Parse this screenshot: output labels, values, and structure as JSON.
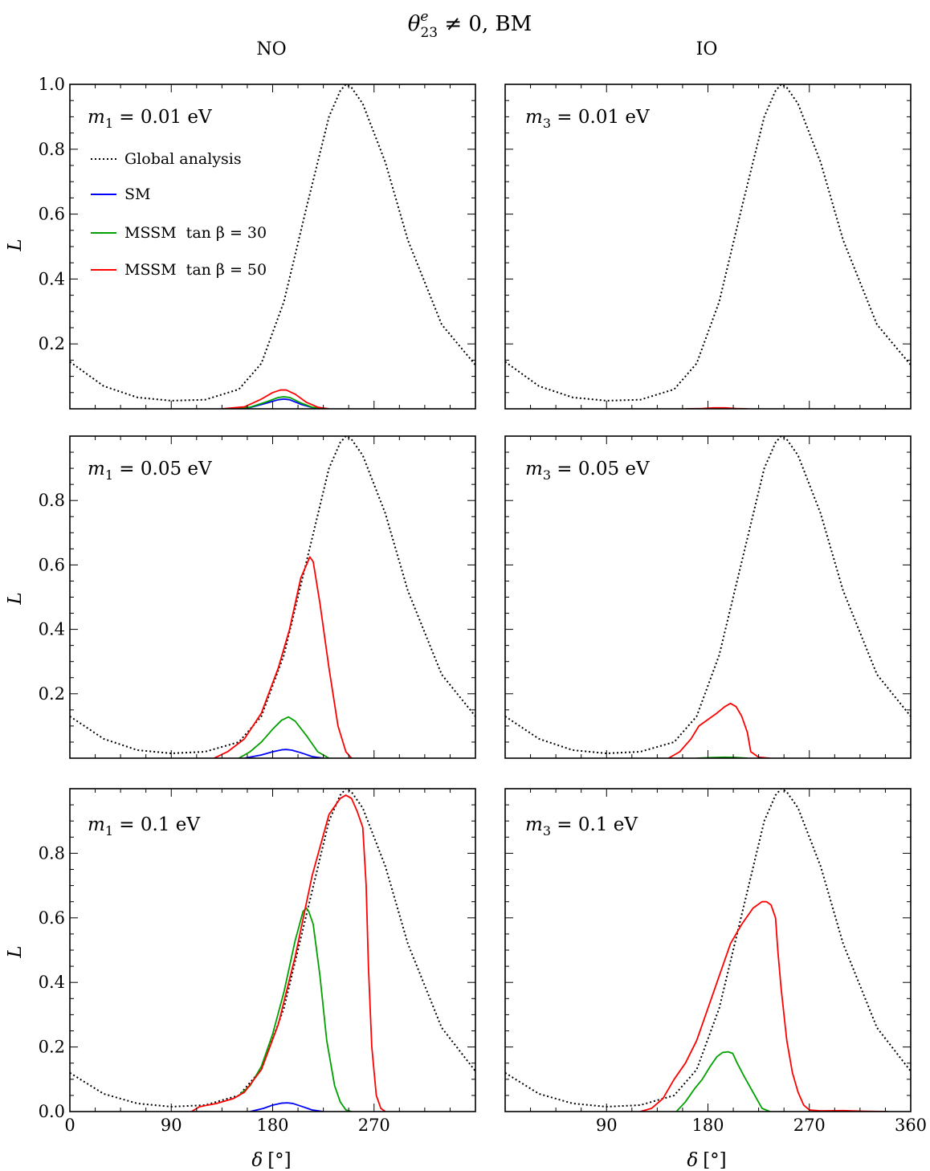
{
  "figure": {
    "title": "θ₂₃ᵉ ≠ 0, BM",
    "title_parts": {
      "symbol": "θ",
      "superscript": "e",
      "subscript": "23",
      "rest": " ≠ 0, BM"
    },
    "columns": [
      "NO",
      "IO"
    ],
    "x_axis_label": "δ [°]",
    "x_axis_label_parts": {
      "symbol": "δ",
      "unit": "[°]"
    },
    "y_axis_label": "L",
    "colors": {
      "global": "#000000",
      "sm": "#0000ff",
      "mssm30": "#00a000",
      "mssm50": "#ff0000"
    }
  },
  "legend": {
    "placement": "upper-left of top-left panel",
    "entries": [
      {
        "label": "Global analysis",
        "color": "#000000",
        "style": "dotted"
      },
      {
        "label": "SM",
        "color": "#0000ff",
        "style": "solid"
      },
      {
        "label": "MSSM  tan β = 30",
        "color": "#00a000",
        "style": "solid"
      },
      {
        "label": "MSSM  tan β = 50",
        "color": "#ff0000",
        "style": "solid"
      }
    ]
  },
  "chart_data": [
    {
      "type": "line",
      "id": "NO-m0.01",
      "ordering": "NO",
      "annotation": "m₁ = 0.01 eV",
      "annot_parts": {
        "mass": "m",
        "index": "1",
        "value": " = 0.01 eV"
      },
      "xlim": [
        0,
        360
      ],
      "ylim": [
        0,
        1.0
      ],
      "xticks": [],
      "yticks": [
        0.2,
        0.4,
        0.6,
        0.8,
        1.0
      ],
      "ytick_labels": [
        "0.2",
        "0.4",
        "0.6",
        "0.8",
        "1.0"
      ],
      "series": [
        {
          "name": "Global analysis",
          "x": [
            0,
            30,
            60,
            90,
            120,
            150,
            170,
            190,
            210,
            230,
            240,
            245,
            250,
            260,
            280,
            300,
            330,
            360
          ],
          "y": [
            0.145,
            0.07,
            0.035,
            0.025,
            0.028,
            0.06,
            0.14,
            0.33,
            0.62,
            0.9,
            0.98,
            1.0,
            0.99,
            0.94,
            0.76,
            0.52,
            0.26,
            0.135
          ]
        },
        {
          "name": "SM",
          "x": [
            140,
            160,
            175,
            185,
            190,
            195,
            205,
            215,
            225
          ],
          "y": [
            0,
            0.004,
            0.018,
            0.028,
            0.03,
            0.028,
            0.014,
            0.004,
            0
          ]
        },
        {
          "name": "MSSM  tan β = 30",
          "x": [
            140,
            160,
            175,
            185,
            190,
            195,
            205,
            215,
            225
          ],
          "y": [
            0,
            0.005,
            0.022,
            0.035,
            0.037,
            0.035,
            0.018,
            0.005,
            0
          ]
        },
        {
          "name": "MSSM  tan β = 50",
          "x": [
            135,
            155,
            170,
            180,
            187,
            192,
            200,
            210,
            220,
            230
          ],
          "y": [
            0,
            0.006,
            0.03,
            0.05,
            0.058,
            0.058,
            0.045,
            0.02,
            0.005,
            0
          ]
        }
      ]
    },
    {
      "type": "line",
      "id": "IO-m0.01",
      "ordering": "IO",
      "annotation": "m₃ = 0.01 eV",
      "annot_parts": {
        "mass": "m",
        "index": "3",
        "value": " = 0.01 eV"
      },
      "xlim": [
        0,
        360
      ],
      "ylim": [
        0,
        1.0
      ],
      "xticks": [],
      "yticks": [],
      "ytick_labels": [],
      "series": [
        {
          "name": "Global analysis",
          "x": [
            0,
            30,
            60,
            90,
            120,
            150,
            170,
            190,
            210,
            230,
            240,
            245,
            250,
            260,
            280,
            300,
            330,
            360
          ],
          "y": [
            0.145,
            0.07,
            0.035,
            0.025,
            0.028,
            0.06,
            0.14,
            0.33,
            0.62,
            0.9,
            0.98,
            1.0,
            0.99,
            0.94,
            0.76,
            0.52,
            0.26,
            0.135
          ]
        },
        {
          "name": "MSSM  tan β = 50",
          "x": [
            160,
            175,
            185,
            195,
            205,
            215
          ],
          "y": [
            0,
            0.001,
            0.003,
            0.003,
            0.001,
            0
          ]
        }
      ]
    },
    {
      "type": "line",
      "id": "NO-m0.05",
      "ordering": "NO",
      "annotation": "m₁ = 0.05 eV",
      "annot_parts": {
        "mass": "m",
        "index": "1",
        "value": " = 0.05 eV"
      },
      "xlim": [
        0,
        360
      ],
      "ylim": [
        0,
        1.0
      ],
      "xticks": [],
      "yticks": [
        0.2,
        0.4,
        0.6,
        0.8
      ],
      "ytick_labels": [
        "0.2",
        "0.4",
        "0.6",
        "0.8"
      ],
      "series": [
        {
          "name": "Global analysis",
          "x": [
            0,
            30,
            60,
            90,
            120,
            150,
            170,
            190,
            210,
            230,
            240,
            245,
            250,
            260,
            280,
            300,
            330,
            360
          ],
          "y": [
            0.13,
            0.06,
            0.025,
            0.015,
            0.02,
            0.05,
            0.13,
            0.32,
            0.61,
            0.9,
            0.98,
            1.0,
            0.99,
            0.94,
            0.76,
            0.52,
            0.26,
            0.13
          ]
        },
        {
          "name": "SM",
          "x": [
            155,
            170,
            180,
            188,
            192,
            197,
            205,
            215,
            225
          ],
          "y": [
            0,
            0.01,
            0.02,
            0.026,
            0.027,
            0.025,
            0.017,
            0.005,
            0
          ]
        },
        {
          "name": "MSSM  tan β = 30",
          "x": [
            150,
            160,
            170,
            180,
            188,
            194,
            200,
            210,
            220,
            230
          ],
          "y": [
            0,
            0.02,
            0.05,
            0.09,
            0.118,
            0.128,
            0.115,
            0.07,
            0.02,
            0
          ]
        },
        {
          "name": "MSSM  tan β = 50",
          "x": [
            128,
            140,
            155,
            170,
            185,
            195,
            205,
            210,
            213,
            216,
            222,
            230,
            238,
            245,
            250
          ],
          "y": [
            0,
            0.02,
            0.06,
            0.14,
            0.28,
            0.4,
            0.56,
            0.6,
            0.625,
            0.61,
            0.48,
            0.28,
            0.1,
            0.02,
            0
          ]
        }
      ]
    },
    {
      "type": "line",
      "id": "IO-m0.05",
      "ordering": "IO",
      "annotation": "m₃ = 0.05 eV",
      "annot_parts": {
        "mass": "m",
        "index": "3",
        "value": " = 0.05 eV"
      },
      "xlim": [
        0,
        360
      ],
      "ylim": [
        0,
        1.0
      ],
      "xticks": [],
      "yticks": [],
      "ytick_labels": [],
      "series": [
        {
          "name": "Global analysis",
          "x": [
            0,
            30,
            60,
            90,
            120,
            150,
            170,
            190,
            210,
            230,
            240,
            245,
            250,
            260,
            280,
            300,
            330,
            360
          ],
          "y": [
            0.13,
            0.06,
            0.025,
            0.015,
            0.02,
            0.05,
            0.13,
            0.32,
            0.61,
            0.9,
            0.98,
            1.0,
            0.99,
            0.94,
            0.76,
            0.52,
            0.26,
            0.13
          ]
        },
        {
          "name": "MSSM  tan β = 30",
          "x": [
            170,
            185,
            195,
            205,
            215
          ],
          "y": [
            0,
            0.002,
            0.003,
            0.002,
            0
          ]
        },
        {
          "name": "MSSM  tan β = 50",
          "x": [
            145,
            155,
            165,
            172,
            180,
            188,
            195,
            200,
            205,
            210,
            215,
            218,
            225,
            235
          ],
          "y": [
            0,
            0.02,
            0.06,
            0.1,
            0.12,
            0.14,
            0.16,
            0.17,
            0.16,
            0.13,
            0.08,
            0.02,
            0.003,
            0
          ]
        }
      ]
    },
    {
      "type": "line",
      "id": "NO-m0.1",
      "ordering": "NO",
      "annotation": "m₁ = 0.1 eV",
      "annot_parts": {
        "mass": "m",
        "index": "1",
        "value": " = 0.1 eV"
      },
      "xlim": [
        0,
        360
      ],
      "ylim": [
        0,
        1.0
      ],
      "xticks": [
        0,
        90,
        180,
        270
      ],
      "xtick_labels": [
        "0",
        "90",
        "180",
        "270"
      ],
      "yticks": [
        0.0,
        0.2,
        0.4,
        0.6,
        0.8
      ],
      "ytick_labels": [
        "0.0",
        "0.2",
        "0.4",
        "0.6",
        "0.8"
      ],
      "series": [
        {
          "name": "Global analysis",
          "x": [
            0,
            30,
            60,
            90,
            120,
            150,
            170,
            190,
            210,
            230,
            240,
            245,
            250,
            260,
            280,
            300,
            330,
            360
          ],
          "y": [
            0.12,
            0.055,
            0.025,
            0.015,
            0.02,
            0.05,
            0.13,
            0.32,
            0.61,
            0.9,
            0.98,
            1.0,
            0.99,
            0.94,
            0.76,
            0.52,
            0.26,
            0.125
          ]
        },
        {
          "name": "SM",
          "x": [
            160,
            172,
            180,
            188,
            193,
            198,
            205,
            215,
            225
          ],
          "y": [
            0,
            0.01,
            0.02,
            0.026,
            0.027,
            0.025,
            0.017,
            0.005,
            0
          ]
        },
        {
          "name": "MSSM  tan β = 30",
          "x": [
            150,
            160,
            170,
            180,
            190,
            200,
            207,
            210,
            212,
            216,
            222,
            228,
            235,
            240,
            245,
            250
          ],
          "y": [
            0.05,
            0.08,
            0.14,
            0.24,
            0.37,
            0.53,
            0.62,
            0.63,
            0.62,
            0.58,
            0.42,
            0.22,
            0.08,
            0.03,
            0.005,
            0
          ]
        },
        {
          "name": "MSSM  tan β = 50",
          "x": [
            108,
            115,
            130,
            145,
            155,
            170,
            185,
            200,
            215,
            230,
            240,
            245,
            250,
            255,
            260,
            263,
            265,
            268,
            272,
            276,
            280
          ],
          "y": [
            0,
            0.015,
            0.025,
            0.04,
            0.06,
            0.13,
            0.27,
            0.48,
            0.73,
            0.92,
            0.97,
            0.98,
            0.97,
            0.93,
            0.88,
            0.7,
            0.45,
            0.2,
            0.05,
            0.01,
            0
          ]
        }
      ]
    },
    {
      "type": "line",
      "id": "IO-m0.1",
      "ordering": "IO",
      "annotation": "m₃ = 0.1 eV",
      "annot_parts": {
        "mass": "m",
        "index": "3",
        "value": " = 0.1 eV"
      },
      "xlim": [
        0,
        360
      ],
      "ylim": [
        0,
        1.0
      ],
      "xticks": [
        90,
        180,
        270,
        360
      ],
      "xtick_labels": [
        "90",
        "180",
        "270",
        "360"
      ],
      "yticks": [],
      "ytick_labels": [],
      "series": [
        {
          "name": "Global analysis",
          "x": [
            0,
            30,
            60,
            90,
            120,
            150,
            170,
            190,
            210,
            230,
            240,
            245,
            250,
            260,
            280,
            300,
            330,
            360
          ],
          "y": [
            0.12,
            0.055,
            0.025,
            0.015,
            0.02,
            0.05,
            0.13,
            0.32,
            0.61,
            0.9,
            0.98,
            1.0,
            0.99,
            0.94,
            0.76,
            0.52,
            0.26,
            0.125
          ]
        },
        {
          "name": "MSSM  tan β = 30",
          "x": [
            152,
            160,
            168,
            175,
            182,
            188,
            193,
            198,
            202,
            206,
            212,
            220,
            228,
            235
          ],
          "y": [
            0,
            0.03,
            0.07,
            0.1,
            0.14,
            0.17,
            0.183,
            0.185,
            0.18,
            0.15,
            0.11,
            0.06,
            0.01,
            0
          ]
        },
        {
          "name": "MSSM  tan β = 50",
          "x": [
            120,
            130,
            140,
            150,
            160,
            170,
            180,
            190,
            200,
            210,
            220,
            228,
            232,
            236,
            240,
            242,
            245,
            250,
            255,
            260,
            265,
            270,
            280,
            300,
            320,
            340
          ],
          "y": [
            0,
            0.01,
            0.04,
            0.1,
            0.15,
            0.22,
            0.32,
            0.42,
            0.52,
            0.58,
            0.63,
            0.65,
            0.65,
            0.64,
            0.6,
            0.5,
            0.38,
            0.22,
            0.12,
            0.06,
            0.02,
            0.005,
            0.002,
            0.003,
            0.001,
            0
          ]
        }
      ]
    }
  ]
}
